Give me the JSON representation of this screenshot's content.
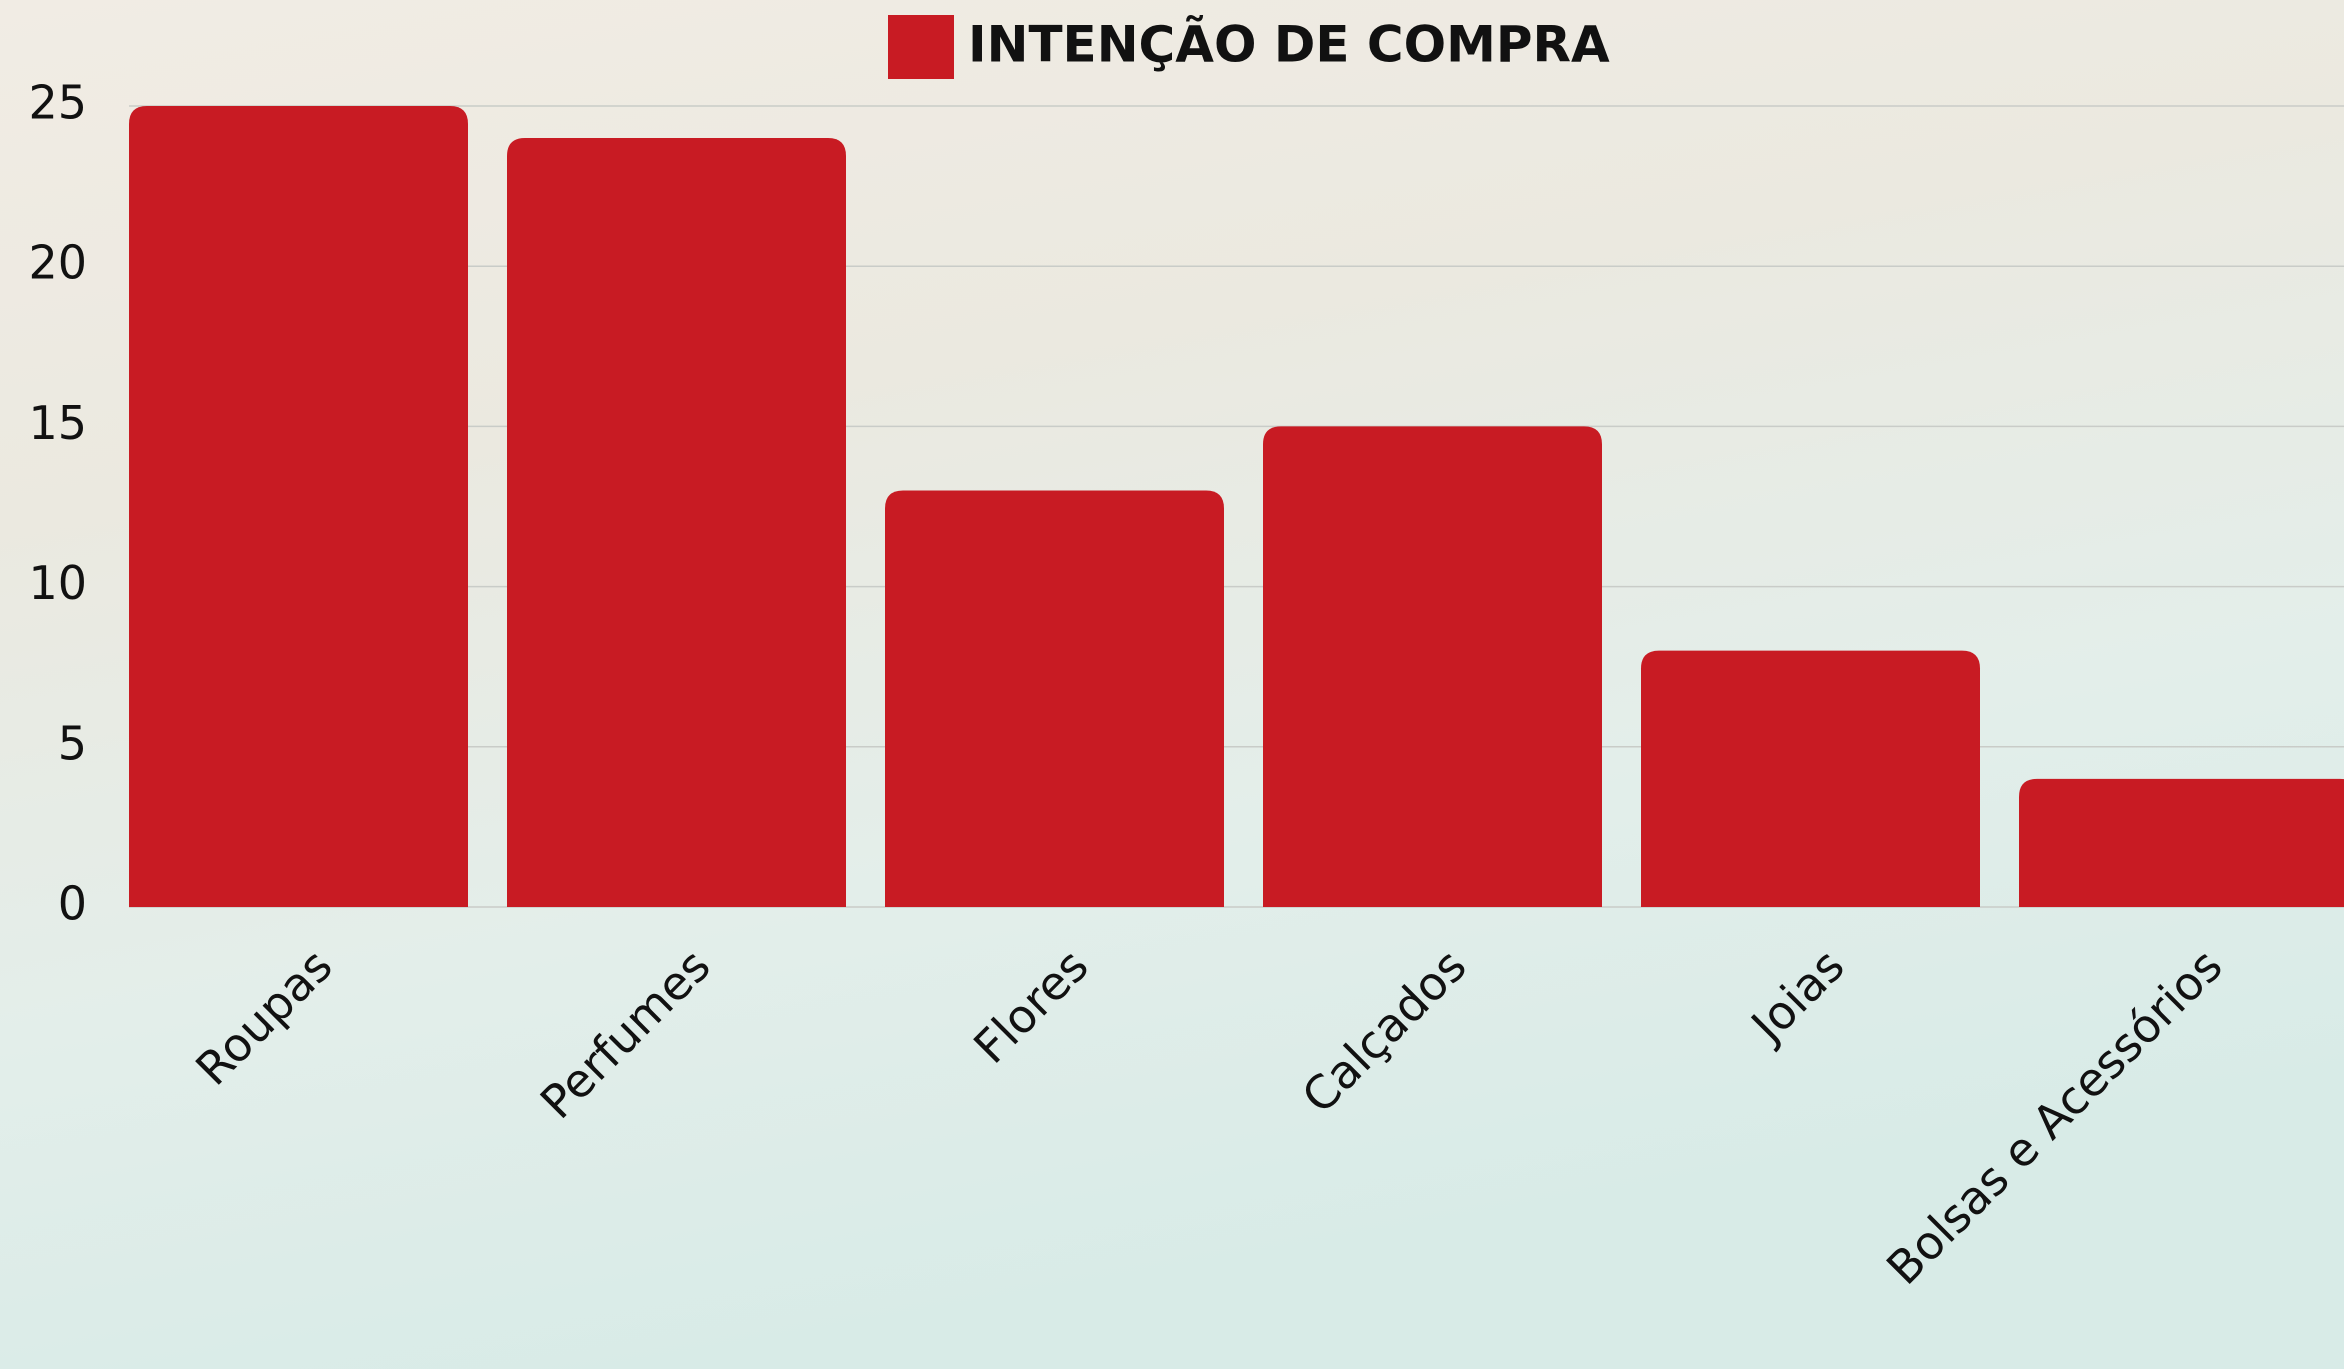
{
  "chart_data": {
    "type": "bar",
    "categories": [
      "Roupas",
      "Perfumes",
      "Flores",
      "Calçados",
      "Joias",
      "Bolsas e Acessórios"
    ],
    "series": [
      {
        "name": "INTENÇÃO DE COMPRA",
        "color": "#c81b23",
        "values": [
          25,
          24,
          13,
          15,
          8,
          4
        ]
      }
    ],
    "ylim": [
      0,
      25
    ],
    "yticks": [
      0,
      5,
      10,
      15,
      20,
      25
    ],
    "grid": true,
    "legend": "top"
  }
}
